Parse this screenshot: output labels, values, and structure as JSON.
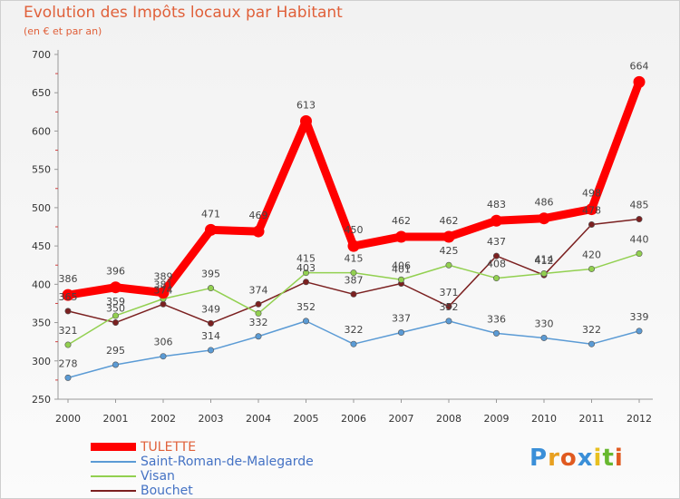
{
  "chart_data": {
    "type": "line",
    "title": "Evolution des Impôts locaux par Habitant",
    "subtitle": "(en € et par an)",
    "xlabel": "",
    "ylabel": "",
    "x": [
      "2000",
      "2001",
      "2002",
      "2003",
      "2004",
      "2005",
      "2006",
      "2007",
      "2008",
      "2009",
      "2010",
      "2011",
      "2012"
    ],
    "ylim": [
      250,
      700
    ],
    "yticks": [
      250,
      300,
      350,
      400,
      450,
      500,
      550,
      600,
      650,
      700
    ],
    "grid": false,
    "legend_position": "bottom-left",
    "series": [
      {
        "name": "TULETTE",
        "color": "#ff0000",
        "values": [
          386,
          396,
          389,
          471,
          469,
          613,
          450,
          462,
          462,
          483,
          486,
          498,
          664
        ]
      },
      {
        "name": "Saint-Roman-de-Malegarde",
        "color": "#5b9bd5",
        "values": [
          278,
          295,
          306,
          314,
          332,
          352,
          322,
          337,
          352,
          336,
          330,
          322,
          339
        ]
      },
      {
        "name": "Visan",
        "color": "#92d050",
        "values": [
          321,
          359,
          381,
          395,
          362,
          415,
          415,
          406,
          425,
          408,
          414,
          420,
          440
        ]
      },
      {
        "name": "Bouchet",
        "color": "#7b2020",
        "values": [
          365,
          350,
          374,
          349,
          374,
          403,
          387,
          401,
          371,
          437,
          412,
          478,
          485
        ]
      }
    ],
    "data_labels": [
      {
        "name": "TULETTE",
        "labels": [
          "386",
          "396",
          "389",
          "471",
          "469",
          "613",
          "450",
          "462",
          "462",
          "483",
          "486",
          "498",
          "664"
        ]
      },
      {
        "name": "Saint-Roman-de-Malegarde",
        "labels": [
          "278",
          "295",
          "306",
          "314",
          "332",
          "352",
          "322",
          "337",
          "352",
          "336",
          "330",
          "322",
          "339"
        ]
      },
      {
        "name": "Visan",
        "labels": [
          "321",
          "359",
          "381",
          "395",
          "",
          "415",
          "415",
          "406",
          "425",
          "408",
          "414",
          "420",
          "440"
        ]
      },
      {
        "name": "Bouchet",
        "labels": [
          "365",
          "350",
          "374",
          "349",
          "374",
          "403",
          "387",
          "401",
          "371",
          "437",
          "412",
          "478",
          "485"
        ]
      }
    ]
  },
  "logo": {
    "text": "Proxiti",
    "letters": [
      "P",
      "r",
      "o",
      "x",
      "i",
      "t",
      "i"
    ],
    "colors": [
      "#3a8fd8",
      "#e8a020",
      "#e05a20",
      "#3a8fd8",
      "#e8c020",
      "#68b830",
      "#e05a20"
    ]
  }
}
